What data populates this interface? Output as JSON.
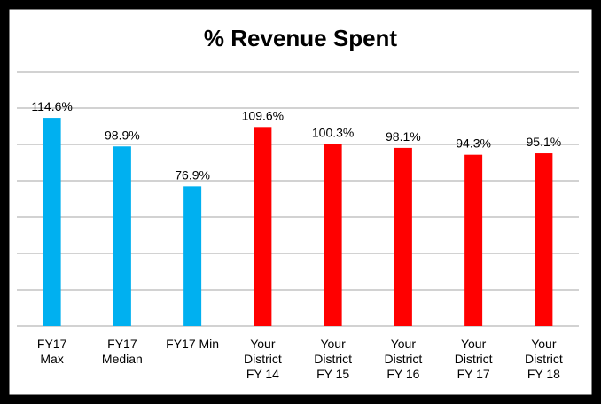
{
  "chart_data": {
    "type": "bar",
    "title": "% Revenue Spent",
    "categories": [
      "FY17\nMax",
      "FY17\nMedian",
      "FY17 Min",
      "Your\nDistrict\nFY 14",
      "Your\nDistrict\nFY 15",
      "Your\nDistrict\nFY 16",
      "Your\nDistrict\nFY 17",
      "Your\nDistrict\nFY 18"
    ],
    "values": [
      114.6,
      98.9,
      76.9,
      109.6,
      100.3,
      98.1,
      94.3,
      95.1
    ],
    "value_labels": [
      "114.6%",
      "98.9%",
      "76.9%",
      "109.6%",
      "100.3%",
      "98.1%",
      "94.3%",
      "95.1%"
    ],
    "colors": [
      "#00b0f0",
      "#00b0f0",
      "#00b0f0",
      "#ff0000",
      "#ff0000",
      "#ff0000",
      "#ff0000",
      "#ff0000"
    ],
    "ylim": [
      0,
      140
    ],
    "yticks": [
      0,
      20,
      40,
      60,
      80,
      100,
      120,
      140
    ],
    "grid": true
  }
}
